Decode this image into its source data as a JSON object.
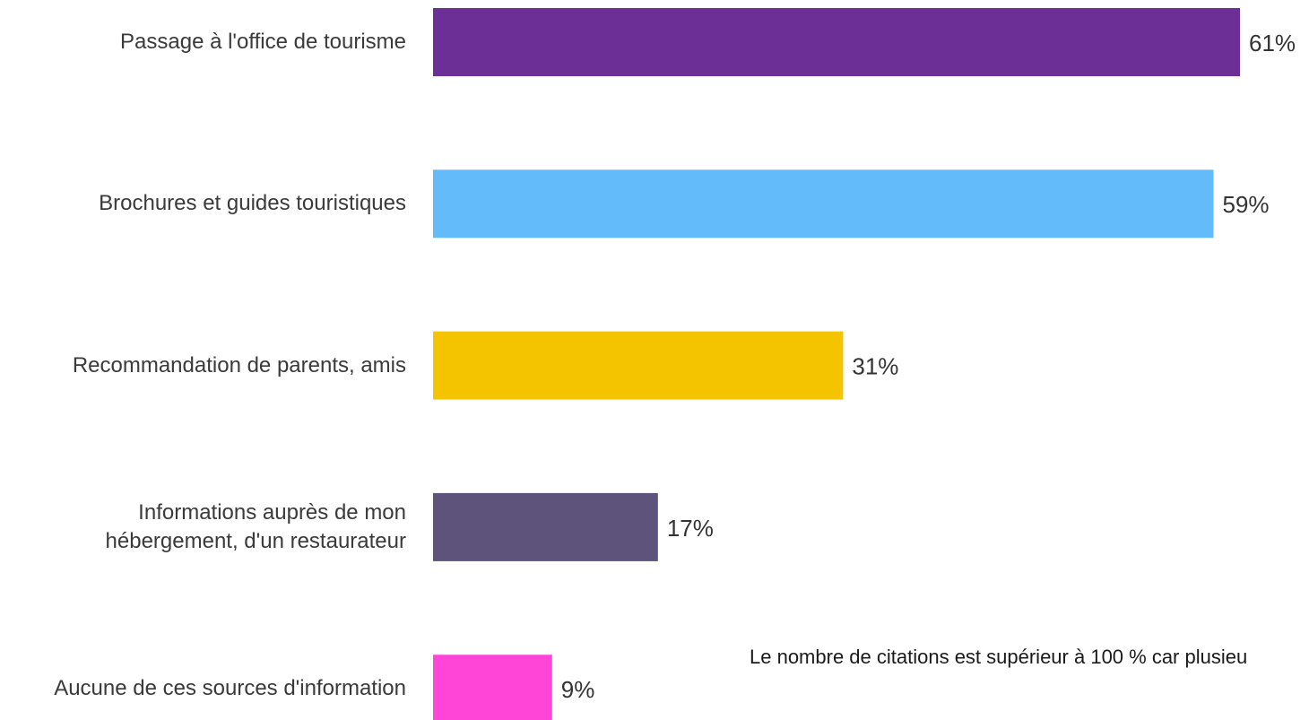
{
  "chart_data": {
    "type": "bar",
    "orientation": "horizontal",
    "categories": [
      "Passage à l'office de tourisme",
      "Brochures et guides touristiques",
      "Recommandation de parents, amis",
      "Informations auprès de mon hébergement, d'un restaurateur",
      "Aucune de ces sources d'information"
    ],
    "values": [
      61,
      59,
      31,
      17,
      9
    ],
    "value_labels": [
      "61%",
      "59%",
      "31%",
      "17%",
      "9%"
    ],
    "colors": [
      "#6b2f96",
      "#64bbf9",
      "#f5c400",
      "#5e537b",
      "#ff45d8"
    ],
    "annotation": "Le nombre de citations est supérieur à 100 % car plusieu"
  }
}
